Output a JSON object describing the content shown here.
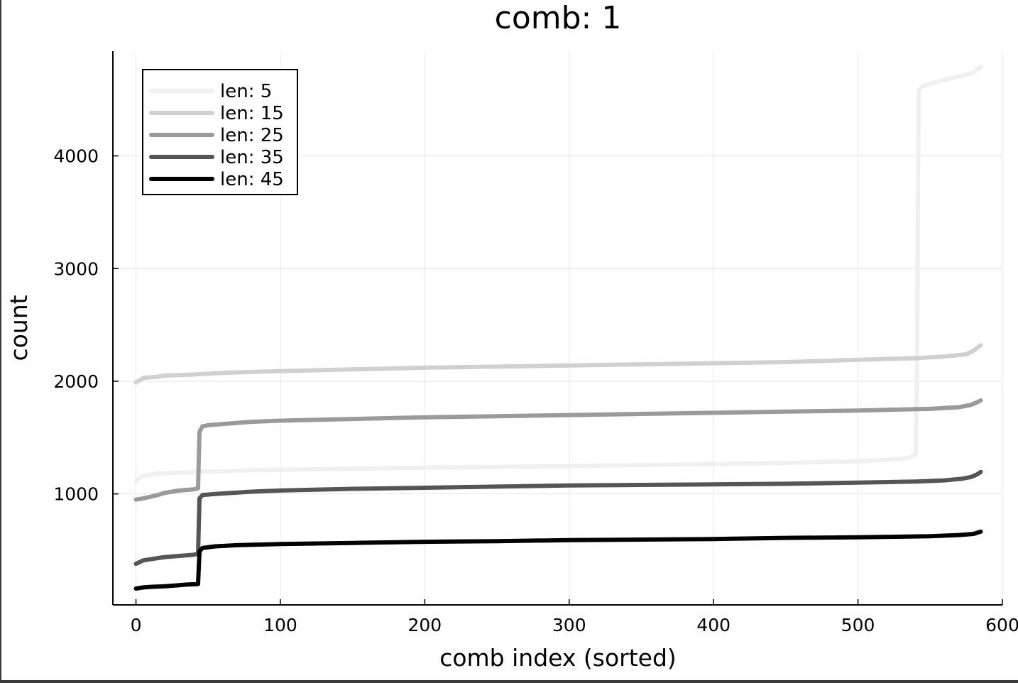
{
  "chart_data": {
    "type": "line",
    "title": "comb: 1",
    "xlabel": "comb index (sorted)",
    "ylabel": "count",
    "xlim": [
      -16,
      600
    ],
    "ylim": [
      15,
      4930
    ],
    "x_ticks": [
      0,
      100,
      200,
      300,
      400,
      500,
      600
    ],
    "y_ticks": [
      1000,
      2000,
      3000,
      4000
    ],
    "grid": true,
    "legend_position": "top-left",
    "series": [
      {
        "name": "len: 5",
        "color": "#f0f0f0",
        "points": [
          [
            0,
            1110
          ],
          [
            2,
            1140
          ],
          [
            5,
            1160
          ],
          [
            15,
            1180
          ],
          [
            40,
            1195
          ],
          [
            80,
            1210
          ],
          [
            150,
            1225
          ],
          [
            250,
            1240
          ],
          [
            350,
            1255
          ],
          [
            450,
            1275
          ],
          [
            500,
            1290
          ],
          [
            530,
            1310
          ],
          [
            537,
            1330
          ],
          [
            540,
            1360
          ],
          [
            541,
            2400
          ],
          [
            542,
            4580
          ],
          [
            545,
            4620
          ],
          [
            555,
            4660
          ],
          [
            565,
            4690
          ],
          [
            575,
            4720
          ],
          [
            580,
            4740
          ],
          [
            585,
            4790
          ]
        ]
      },
      {
        "name": "len: 15",
        "color": "#d0d0d0",
        "points": [
          [
            0,
            1990
          ],
          [
            3,
            2010
          ],
          [
            5,
            2030
          ],
          [
            15,
            2040
          ],
          [
            20,
            2050
          ],
          [
            40,
            2060
          ],
          [
            60,
            2075
          ],
          [
            100,
            2090
          ],
          [
            150,
            2105
          ],
          [
            200,
            2120
          ],
          [
            250,
            2130
          ],
          [
            300,
            2140
          ],
          [
            350,
            2150
          ],
          [
            400,
            2160
          ],
          [
            450,
            2170
          ],
          [
            500,
            2190
          ],
          [
            540,
            2205
          ],
          [
            560,
            2220
          ],
          [
            575,
            2240
          ],
          [
            580,
            2270
          ],
          [
            585,
            2320
          ]
        ]
      },
      {
        "name": "len: 25",
        "color": "#9a9a9a",
        "points": [
          [
            0,
            950
          ],
          [
            5,
            960
          ],
          [
            10,
            975
          ],
          [
            15,
            990
          ],
          [
            20,
            1010
          ],
          [
            30,
            1030
          ],
          [
            40,
            1040
          ],
          [
            43,
            1050
          ],
          [
            44,
            1550
          ],
          [
            46,
            1600
          ],
          [
            50,
            1610
          ],
          [
            60,
            1620
          ],
          [
            80,
            1640
          ],
          [
            100,
            1650
          ],
          [
            150,
            1665
          ],
          [
            200,
            1680
          ],
          [
            250,
            1690
          ],
          [
            300,
            1700
          ],
          [
            350,
            1710
          ],
          [
            400,
            1720
          ],
          [
            450,
            1730
          ],
          [
            500,
            1740
          ],
          [
            550,
            1755
          ],
          [
            570,
            1770
          ],
          [
            578,
            1790
          ],
          [
            582,
            1810
          ],
          [
            585,
            1830
          ]
        ]
      },
      {
        "name": "len: 35",
        "color": "#555555",
        "points": [
          [
            0,
            380
          ],
          [
            5,
            410
          ],
          [
            10,
            420
          ],
          [
            15,
            430
          ],
          [
            20,
            440
          ],
          [
            30,
            450
          ],
          [
            40,
            460
          ],
          [
            43,
            470
          ],
          [
            44,
            960
          ],
          [
            46,
            990
          ],
          [
            55,
            1000
          ],
          [
            80,
            1020
          ],
          [
            100,
            1030
          ],
          [
            150,
            1045
          ],
          [
            200,
            1055
          ],
          [
            250,
            1065
          ],
          [
            300,
            1075
          ],
          [
            350,
            1080
          ],
          [
            400,
            1085
          ],
          [
            450,
            1090
          ],
          [
            500,
            1100
          ],
          [
            540,
            1110
          ],
          [
            560,
            1120
          ],
          [
            572,
            1135
          ],
          [
            578,
            1150
          ],
          [
            582,
            1170
          ],
          [
            585,
            1195
          ]
        ]
      },
      {
        "name": "len: 45",
        "color": "#000000",
        "points": [
          [
            0,
            160
          ],
          [
            5,
            170
          ],
          [
            10,
            175
          ],
          [
            20,
            180
          ],
          [
            30,
            190
          ],
          [
            35,
            195
          ],
          [
            43,
            200
          ],
          [
            44,
            490
          ],
          [
            46,
            520
          ],
          [
            55,
            535
          ],
          [
            70,
            545
          ],
          [
            100,
            555
          ],
          [
            150,
            565
          ],
          [
            200,
            575
          ],
          [
            250,
            580
          ],
          [
            300,
            590
          ],
          [
            350,
            595
          ],
          [
            400,
            600
          ],
          [
            450,
            610
          ],
          [
            500,
            615
          ],
          [
            550,
            625
          ],
          [
            570,
            635
          ],
          [
            580,
            645
          ],
          [
            585,
            665
          ]
        ]
      }
    ]
  }
}
